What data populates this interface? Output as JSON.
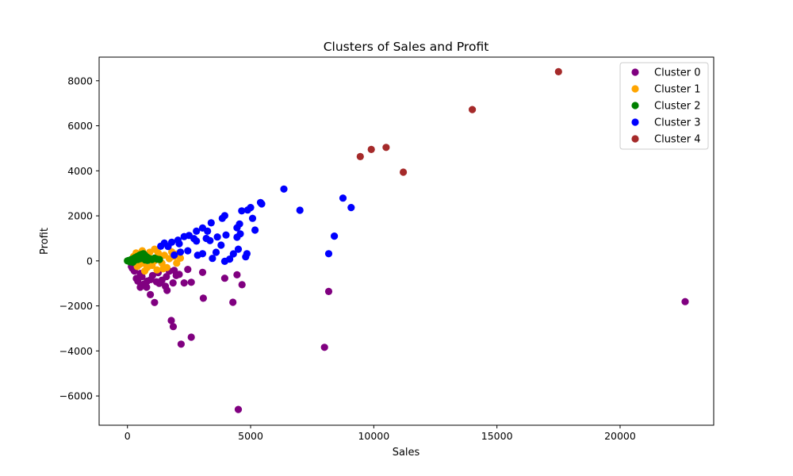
{
  "chart_data": {
    "type": "scatter",
    "title": "Clusters of Sales and Profit",
    "xlabel": "Sales",
    "ylabel": "Profit",
    "xlim": [
      -1150,
      23800
    ],
    "ylim": [
      -7300,
      9050
    ],
    "xticks": [
      0,
      5000,
      10000,
      15000,
      20000
    ],
    "yticks": [
      -6000,
      -4000,
      -2000,
      0,
      2000,
      4000,
      6000,
      8000
    ],
    "xtick_labels": [
      "0",
      "5000",
      "10000",
      "15000",
      "20000"
    ],
    "ytick_labels": [
      "−6000",
      "−4000",
      "−2000",
      "0",
      "2000",
      "4000",
      "6000",
      "8000"
    ],
    "grid": false,
    "legend_position": "top-right",
    "series": [
      {
        "name": "Cluster 0",
        "color": "#800080",
        "points": [
          [
            22640,
            -1810
          ],
          [
            4500,
            -6600
          ],
          [
            8000,
            -3840
          ],
          [
            8170,
            -1360
          ],
          [
            2590,
            -3390
          ],
          [
            2180,
            -3700
          ],
          [
            1860,
            -2920
          ],
          [
            1780,
            -2650
          ],
          [
            1100,
            -1850
          ],
          [
            930,
            -1500
          ],
          [
            4280,
            -1840
          ],
          [
            3080,
            -1660
          ],
          [
            4450,
            -620
          ],
          [
            4650,
            -1060
          ],
          [
            3950,
            -770
          ],
          [
            3050,
            -510
          ],
          [
            2590,
            -950
          ],
          [
            2300,
            -980
          ],
          [
            2450,
            -380
          ],
          [
            1980,
            -650
          ],
          [
            1850,
            -980
          ],
          [
            1610,
            -1310
          ],
          [
            1540,
            -1130
          ],
          [
            1580,
            -700
          ],
          [
            1400,
            -860
          ],
          [
            1290,
            -1000
          ],
          [
            1180,
            -930
          ],
          [
            1020,
            -650
          ],
          [
            780,
            -1170
          ],
          [
            670,
            -1030
          ],
          [
            590,
            -700
          ],
          [
            520,
            -1170
          ],
          [
            420,
            -900
          ],
          [
            360,
            -780
          ],
          [
            280,
            -450
          ],
          [
            200,
            -330
          ],
          [
            160,
            -250
          ],
          [
            520,
            -560
          ],
          [
            800,
            -900
          ],
          [
            1700,
            -460
          ],
          [
            1900,
            -420
          ],
          [
            2100,
            -600
          ],
          [
            1250,
            -520
          ],
          [
            950,
            -830
          ]
        ]
      },
      {
        "name": "Cluster 1",
        "color": "#ffa500",
        "points": [
          [
            1100,
            520
          ],
          [
            1980,
            300
          ],
          [
            2150,
            120
          ],
          [
            1200,
            -400
          ],
          [
            800,
            -300
          ],
          [
            600,
            450
          ],
          [
            900,
            380
          ],
          [
            1500,
            250
          ],
          [
            1700,
            100
          ],
          [
            1300,
            200
          ],
          [
            500,
            -150
          ],
          [
            1000,
            -200
          ],
          [
            1400,
            -100
          ],
          [
            700,
            -450
          ],
          [
            350,
            350
          ],
          [
            250,
            200
          ],
          [
            1800,
            400
          ],
          [
            2000,
            -100
          ],
          [
            1600,
            -300
          ],
          [
            900,
            100
          ],
          [
            1100,
            0
          ],
          [
            750,
            200
          ],
          [
            650,
            -100
          ],
          [
            450,
            100
          ],
          [
            1250,
            350
          ],
          [
            1900,
            200
          ],
          [
            400,
            -250
          ],
          [
            1450,
            -350
          ]
        ]
      },
      {
        "name": "Cluster 2",
        "color": "#008000",
        "points": [
          [
            0,
            0
          ],
          [
            50,
            20
          ],
          [
            100,
            -40
          ],
          [
            150,
            60
          ],
          [
            200,
            80
          ],
          [
            250,
            100
          ],
          [
            300,
            140
          ],
          [
            350,
            160
          ],
          [
            400,
            200
          ],
          [
            450,
            220
          ],
          [
            500,
            260
          ],
          [
            550,
            280
          ],
          [
            600,
            300
          ],
          [
            650,
            320
          ],
          [
            700,
            260
          ],
          [
            750,
            200
          ],
          [
            800,
            160
          ],
          [
            850,
            120
          ],
          [
            900,
            100
          ],
          [
            950,
            80
          ],
          [
            1000,
            60
          ],
          [
            1100,
            120
          ],
          [
            1200,
            80
          ],
          [
            1300,
            60
          ],
          [
            120,
            -20
          ],
          [
            220,
            -60
          ],
          [
            320,
            40
          ],
          [
            420,
            60
          ],
          [
            520,
            100
          ],
          [
            620,
            140
          ],
          [
            720,
            40
          ],
          [
            820,
            20
          ]
        ]
      },
      {
        "name": "Cluster 3",
        "color": "#0000ff",
        "points": [
          [
            6350,
            3190
          ],
          [
            7000,
            2250
          ],
          [
            8750,
            2790
          ],
          [
            9080,
            2370
          ],
          [
            8400,
            1100
          ],
          [
            8170,
            320
          ],
          [
            5450,
            2530
          ],
          [
            5400,
            2590
          ],
          [
            5000,
            2370
          ],
          [
            4880,
            2260
          ],
          [
            4640,
            2220
          ],
          [
            5080,
            1890
          ],
          [
            5180,
            1370
          ],
          [
            4550,
            1640
          ],
          [
            4450,
            1470
          ],
          [
            4580,
            1200
          ],
          [
            4450,
            1050
          ],
          [
            3950,
            2010
          ],
          [
            3850,
            1890
          ],
          [
            3400,
            1690
          ],
          [
            3050,
            1460
          ],
          [
            3250,
            1320
          ],
          [
            3650,
            1060
          ],
          [
            4000,
            1150
          ],
          [
            2800,
            1320
          ],
          [
            2500,
            1130
          ],
          [
            2700,
            990
          ],
          [
            3200,
            1000
          ],
          [
            3350,
            900
          ],
          [
            2800,
            880
          ],
          [
            2300,
            1080
          ],
          [
            4850,
            320
          ],
          [
            4800,
            180
          ],
          [
            4300,
            310
          ],
          [
            3950,
            -20
          ],
          [
            4150,
            80
          ],
          [
            3450,
            110
          ],
          [
            3050,
            320
          ],
          [
            2850,
            250
          ],
          [
            2450,
            450
          ],
          [
            2100,
            760
          ],
          [
            2050,
            920
          ],
          [
            1800,
            830
          ],
          [
            1650,
            640
          ],
          [
            1500,
            790
          ],
          [
            1350,
            650
          ],
          [
            2150,
            390
          ],
          [
            1900,
            260
          ],
          [
            3600,
            380
          ],
          [
            4500,
            520
          ],
          [
            3800,
            700
          ]
        ]
      },
      {
        "name": "Cluster 4",
        "color": "#a52a2a",
        "points": [
          [
            17500,
            8400
          ],
          [
            14000,
            6720
          ],
          [
            10500,
            5040
          ],
          [
            9900,
            4950
          ],
          [
            9450,
            4630
          ],
          [
            11200,
            3940
          ]
        ]
      }
    ]
  }
}
